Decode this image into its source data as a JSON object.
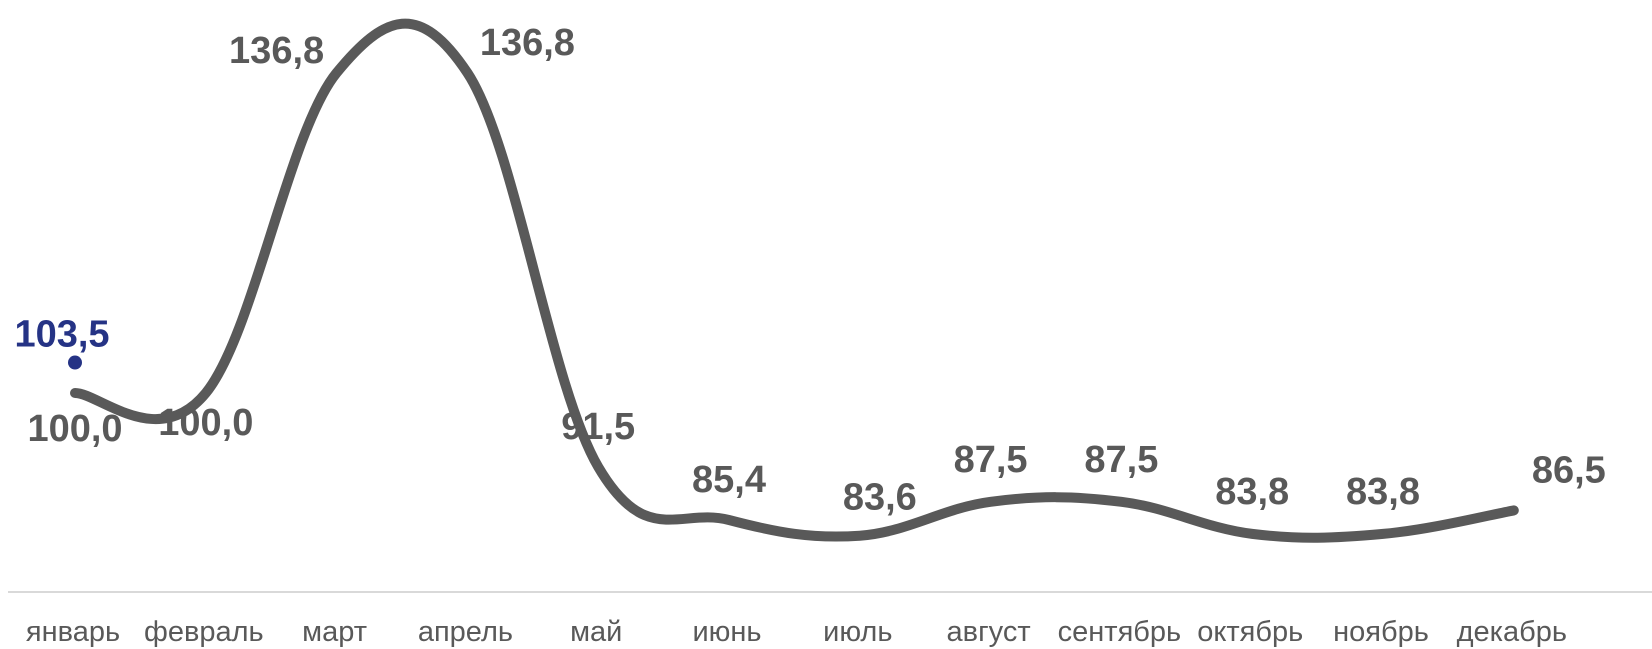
{
  "chart_data": {
    "type": "line",
    "title": "",
    "xlabel": "",
    "ylabel": "",
    "categories": [
      "январь",
      "февраль",
      "март",
      "апрель",
      "май",
      "июнь",
      "июль",
      "август",
      "сентябрь",
      "октябрь",
      "ноябрь",
      "декабрь"
    ],
    "series": [
      {
        "values": [
          100.0,
          100.0,
          136.8,
          136.8,
          91.5,
          85.4,
          83.6,
          87.5,
          87.5,
          83.8,
          83.8,
          86.5
        ],
        "labels": [
          "100,0",
          "100,0",
          "136,8",
          "136,8",
          "91,5",
          "85,4",
          "83,6",
          "87,5",
          "87,5",
          "83,8",
          "83,8",
          "86,5"
        ],
        "color": "#595959",
        "smooth": true
      },
      {
        "values": [
          103.5,
          null,
          null,
          null,
          null,
          null,
          null,
          null,
          null,
          null,
          null,
          null
        ],
        "labels": [
          "103,5"
        ],
        "color": "#253385",
        "marker": "dot"
      }
    ],
    "grid": false,
    "legend": "none"
  }
}
